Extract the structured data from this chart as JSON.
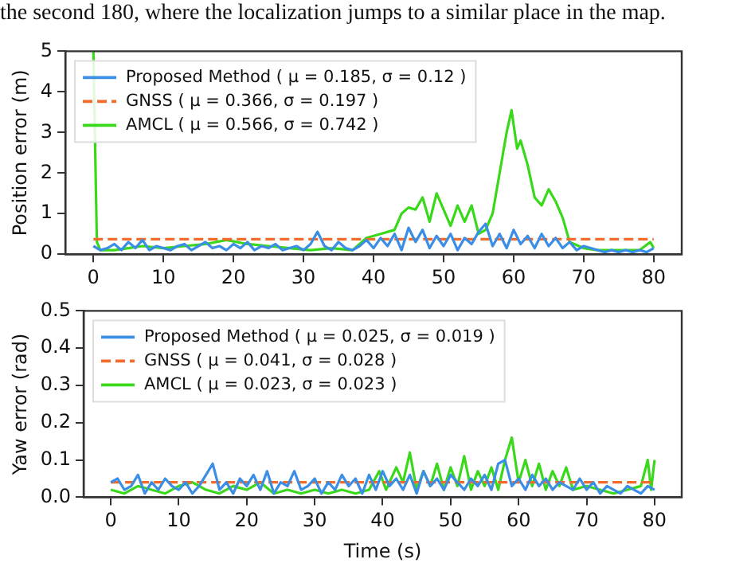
{
  "chart_data": [
    {
      "type": "line",
      "ylabel": "Position error (m)",
      "annotations": [
        "the second 180, where the localization jumps to a similar place in the map."
      ],
      "xlim": [
        -4,
        84
      ],
      "xticks": [
        0,
        10,
        20,
        30,
        40,
        50,
        60,
        70,
        80
      ],
      "ylim": [
        0,
        5
      ],
      "yticks": [
        0,
        1,
        2,
        3,
        4,
        5
      ],
      "legend": "top left",
      "grid": false,
      "series": [
        {
          "name": "Proposed Method ( μ = 0.185, σ = 0.12 )",
          "color": "#3a8ee6",
          "x": [
            0,
            1,
            2,
            3,
            4,
            5,
            6,
            7,
            8,
            9,
            10,
            11,
            12,
            13,
            14,
            15,
            16,
            17,
            18,
            19,
            20,
            21,
            22,
            23,
            24,
            25,
            26,
            27,
            28,
            29,
            30,
            31,
            32,
            33,
            34,
            35,
            36,
            37,
            38,
            39,
            40,
            41,
            42,
            43,
            44,
            45,
            46,
            47,
            48,
            49,
            50,
            51,
            52,
            53,
            54,
            55,
            56,
            57,
            58,
            59,
            60,
            61,
            62,
            63,
            64,
            65,
            66,
            67,
            68,
            69,
            70,
            71,
            72,
            73,
            74,
            75,
            76,
            77,
            78,
            79,
            80
          ],
          "values": [
            0.2,
            0.1,
            0.15,
            0.25,
            0.1,
            0.3,
            0.15,
            0.35,
            0.1,
            0.2,
            0.15,
            0.1,
            0.2,
            0.25,
            0.1,
            0.2,
            0.3,
            0.15,
            0.2,
            0.1,
            0.25,
            0.15,
            0.3,
            0.1,
            0.2,
            0.15,
            0.25,
            0.1,
            0.15,
            0.2,
            0.1,
            0.25,
            0.55,
            0.2,
            0.1,
            0.3,
            0.15,
            0.1,
            0.2,
            0.35,
            0.15,
            0.4,
            0.2,
            0.5,
            0.1,
            0.65,
            0.3,
            0.6,
            0.15,
            0.45,
            0.2,
            0.5,
            0.1,
            0.4,
            0.25,
            0.55,
            0.75,
            0.2,
            0.5,
            0.15,
            0.6,
            0.25,
            0.45,
            0.15,
            0.5,
            0.2,
            0.4,
            0.15,
            0.3,
            0.1,
            0.2,
            0.15,
            0.1,
            0.05,
            0.1,
            0.05,
            0.1,
            0.05,
            0.1,
            0.05,
            0.15
          ]
        },
        {
          "name": "GNSS ( μ = 0.366, σ = 0.197 )",
          "color": "#f26b2a",
          "line_style": "dashed",
          "x": [
            0,
            80
          ],
          "values": [
            0.37,
            0.37
          ]
        },
        {
          "name": "AMCL ( μ = 0.566, σ = 0.742 )",
          "color": "#3ad81a",
          "x": [
            0,
            0.5,
            1,
            3,
            5,
            7,
            10,
            13,
            16,
            19,
            22,
            25,
            28,
            31,
            34,
            37,
            39,
            41,
            43,
            44,
            45,
            46,
            47,
            48,
            49,
            50,
            51,
            52,
            53,
            54,
            55,
            56,
            57,
            58,
            59,
            59.7,
            60.5,
            61,
            62,
            63,
            64,
            65,
            66,
            67,
            68,
            70,
            72,
            75,
            78,
            79.5,
            80
          ],
          "values": [
            5,
            0.3,
            0.1,
            0.1,
            0.15,
            0.2,
            0.15,
            0.2,
            0.25,
            0.35,
            0.25,
            0.2,
            0.15,
            0.1,
            0.15,
            0.1,
            0.4,
            0.5,
            0.6,
            1,
            1.15,
            1.1,
            1.4,
            0.8,
            1.5,
            1.1,
            0.7,
            1.2,
            0.8,
            1.2,
            0.5,
            0.6,
            1,
            2,
            3,
            3.55,
            2.6,
            2.8,
            2.2,
            1.4,
            1.2,
            1.6,
            1.3,
            0.9,
            0.3,
            0.15,
            0.1,
            0.1,
            0.1,
            0.3,
            0.15
          ]
        }
      ]
    },
    {
      "type": "line",
      "xlabel": "Time (s)",
      "ylabel": "Yaw error (rad)",
      "xlim": [
        -4,
        84
      ],
      "xticks": [
        0,
        10,
        20,
        30,
        40,
        50,
        60,
        70,
        80
      ],
      "ylim": [
        0,
        0.5
      ],
      "yticks": [
        {
          "value": 0,
          "label": "0.0"
        },
        0.1,
        0.2,
        0.3,
        0.4,
        0.5
      ],
      "legend": "top left",
      "grid": false,
      "series": [
        {
          "name": "Proposed Method ( μ = 0.025, σ = 0.019 )",
          "color": "#3a8ee6",
          "x": [
            0,
            1,
            2,
            3,
            4,
            5,
            6,
            7,
            8,
            9,
            10,
            11,
            12,
            13,
            14,
            15,
            16,
            17,
            18,
            19,
            20,
            21,
            22,
            23,
            24,
            25,
            26,
            27,
            28,
            29,
            30,
            31,
            32,
            33,
            34,
            35,
            36,
            37,
            38,
            39,
            40,
            41,
            42,
            43,
            44,
            45,
            46,
            47,
            48,
            49,
            50,
            51,
            52,
            53,
            54,
            55,
            56,
            57,
            58,
            59,
            60,
            61,
            62,
            63,
            64,
            65,
            66,
            67,
            68,
            69,
            70,
            71,
            72,
            73,
            74,
            75,
            76,
            77,
            78,
            79,
            80
          ],
          "values": [
            0.04,
            0.05,
            0.02,
            0.03,
            0.06,
            0.01,
            0.04,
            0.02,
            0.05,
            0.03,
            0.02,
            0.04,
            0.01,
            0.03,
            0.06,
            0.09,
            0.02,
            0.04,
            0.01,
            0.05,
            0.03,
            0.06,
            0.02,
            0.07,
            0.01,
            0.04,
            0.03,
            0.07,
            0.02,
            0.03,
            0.05,
            0.01,
            0.04,
            0.02,
            0.06,
            0.03,
            0.05,
            0.01,
            0.06,
            0.02,
            0.07,
            0.03,
            0.05,
            0.02,
            0.06,
            0.01,
            0.07,
            0.03,
            0.05,
            0.02,
            0.06,
            0.04,
            0.02,
            0.05,
            0.03,
            0.06,
            0.02,
            0.09,
            0.1,
            0.03,
            0.05,
            0.02,
            0.06,
            0.03,
            0.05,
            0.02,
            0.04,
            0.03,
            0.02,
            0.05,
            0.02,
            0.04,
            0.01,
            0.03,
            0.02,
            0.01,
            0.03,
            0.02,
            0.01,
            0.03,
            0.02
          ]
        },
        {
          "name": "GNSS ( μ = 0.041, σ = 0.028 )",
          "color": "#f26b2a",
          "line_style": "dashed",
          "x": [
            0,
            80
          ],
          "values": [
            0.04,
            0.04
          ]
        },
        {
          "name": "AMCL ( μ = 0.023, σ = 0.023 )",
          "color": "#3ad81a",
          "x": [
            0,
            2,
            4,
            6,
            8,
            10,
            12,
            14,
            16,
            18,
            20,
            22,
            24,
            26,
            28,
            30,
            32,
            34,
            36,
            38,
            39.5,
            40.5,
            42,
            43,
            44,
            45,
            46,
            47,
            48,
            49,
            50,
            51,
            52,
            53,
            54,
            55,
            56,
            57,
            58,
            59,
            60,
            61,
            62,
            63,
            64,
            65,
            66,
            67,
            68,
            70,
            72,
            74,
            76,
            78,
            79,
            79.5,
            80
          ],
          "values": [
            0.02,
            0.01,
            0.03,
            0.02,
            0.01,
            0.03,
            0.04,
            0.02,
            0.01,
            0.03,
            0.02,
            0.04,
            0.01,
            0.02,
            0.01,
            0.02,
            0.01,
            0.02,
            0.01,
            0.02,
            0.07,
            0.02,
            0.08,
            0.04,
            0.12,
            0.02,
            0.07,
            0.03,
            0.09,
            0.02,
            0.08,
            0.03,
            0.11,
            0.02,
            0.07,
            0.03,
            0.08,
            0.02,
            0.1,
            0.16,
            0.04,
            0.1,
            0.03,
            0.09,
            0.02,
            0.07,
            0.03,
            0.08,
            0.02,
            0.03,
            0.02,
            0.01,
            0.02,
            0.03,
            0.1,
            0.02,
            0.1
          ]
        }
      ]
    }
  ]
}
